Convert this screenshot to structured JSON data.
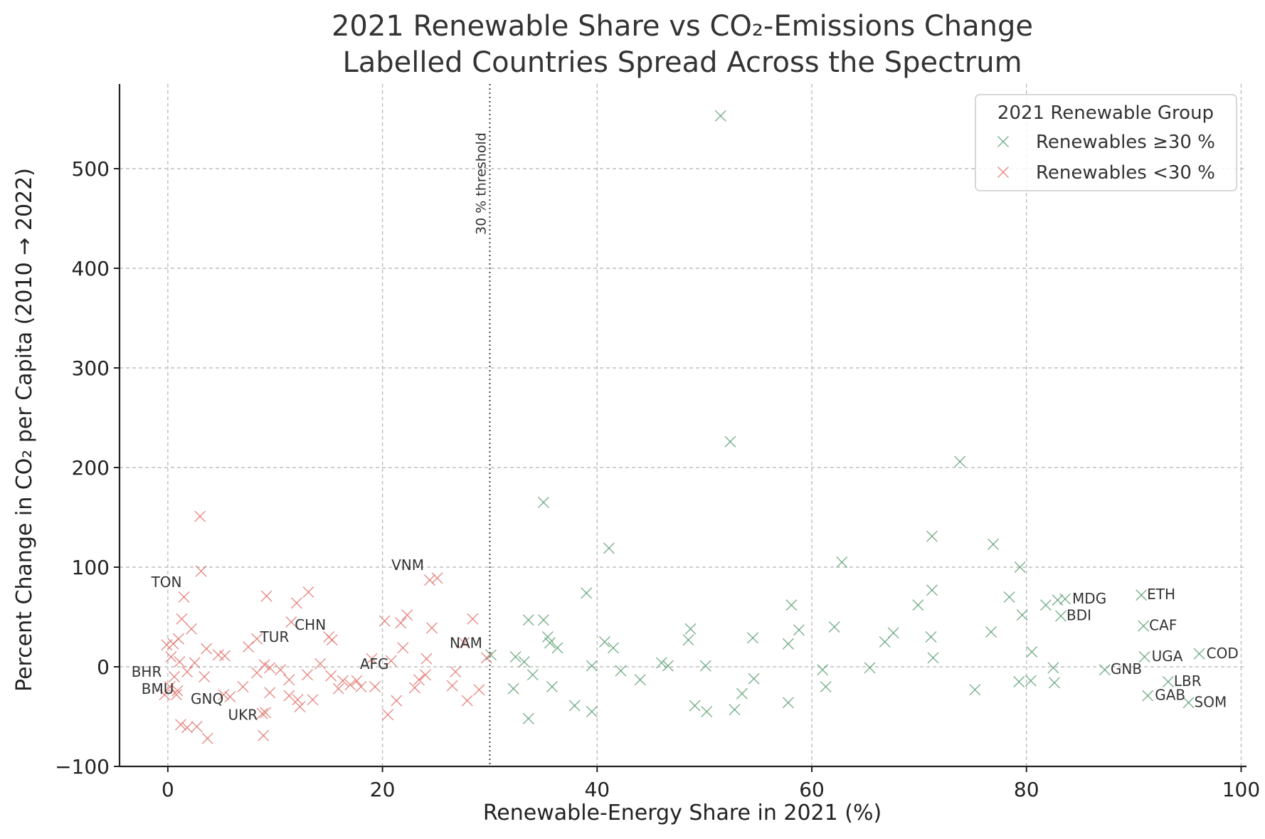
{
  "chart_data": {
    "type": "scatter",
    "title": [
      "2021 Renewable Share vs CO₂-Emissions Change",
      "Labelled Countries Spread Across the Spectrum"
    ],
    "xlabel": "Renewable-Energy Share in 2021 (%)",
    "ylabel": "Percent Change in CO₂ per Capita (2010 → 2022)",
    "xlim": [
      -4.5,
      100.5
    ],
    "ylim": [
      -100,
      585
    ],
    "xticks": [
      0,
      20,
      40,
      60,
      80,
      100
    ],
    "yticks": [
      -100,
      0,
      100,
      200,
      300,
      400,
      500
    ],
    "xtick_labels": [
      "0",
      "20",
      "40",
      "60",
      "80",
      "100"
    ],
    "ytick_labels": [
      "−100",
      "0",
      "100",
      "200",
      "300",
      "400",
      "500"
    ],
    "grid": true,
    "marker": "x",
    "threshold": {
      "x": 30,
      "label": "30 % threshold"
    },
    "legend": {
      "title": "2021 Renewable Group",
      "placement": "top-right",
      "entries": [
        "Renewables ≥30 %",
        "Renewables <30 %"
      ]
    },
    "series": [
      {
        "name": "Renewables ≥30 %",
        "color": "#5a9e6f",
        "points": [
          [
            51.5,
            553
          ],
          [
            52.4,
            226
          ],
          [
            73.8,
            206
          ],
          [
            35.0,
            165
          ],
          [
            71.2,
            131
          ],
          [
            41.1,
            119
          ],
          [
            76.9,
            123
          ],
          [
            62.8,
            105
          ],
          [
            79.4,
            100
          ],
          [
            39.0,
            74
          ],
          [
            71.2,
            77
          ],
          [
            69.9,
            62
          ],
          [
            58.1,
            62
          ],
          [
            78.4,
            70
          ],
          [
            81.8,
            62
          ],
          [
            82.9,
            67
          ],
          [
            83.6,
            68
          ],
          [
            83.2,
            51
          ],
          [
            79.6,
            52
          ],
          [
            90.7,
            72
          ],
          [
            90.9,
            41
          ],
          [
            33.6,
            47
          ],
          [
            35.0,
            47
          ],
          [
            35.4,
            30
          ],
          [
            35.6,
            24
          ],
          [
            36.3,
            19
          ],
          [
            40.7,
            25
          ],
          [
            41.5,
            19
          ],
          [
            48.7,
            38
          ],
          [
            48.5,
            27
          ],
          [
            54.5,
            29
          ],
          [
            57.8,
            23
          ],
          [
            58.8,
            37
          ],
          [
            62.1,
            40
          ],
          [
            66.8,
            25
          ],
          [
            67.6,
            34
          ],
          [
            71.1,
            30
          ],
          [
            71.3,
            9
          ],
          [
            76.7,
            35
          ],
          [
            80.5,
            15
          ],
          [
            96.1,
            13
          ],
          [
            91.0,
            10
          ],
          [
            30.1,
            12
          ],
          [
            32.4,
            10
          ],
          [
            33.2,
            5
          ],
          [
            34.0,
            -8
          ],
          [
            39.5,
            1
          ],
          [
            42.2,
            -4
          ],
          [
            44.0,
            -13
          ],
          [
            46.0,
            4
          ],
          [
            46.6,
            1
          ],
          [
            50.1,
            1
          ],
          [
            54.6,
            -12
          ],
          [
            61.0,
            -3
          ],
          [
            65.4,
            -1
          ],
          [
            82.5,
            -1
          ],
          [
            87.3,
            -3
          ],
          [
            79.3,
            -15
          ],
          [
            80.4,
            -14
          ],
          [
            82.6,
            -16
          ],
          [
            93.2,
            -15
          ],
          [
            32.2,
            -22
          ],
          [
            35.8,
            -20
          ],
          [
            53.5,
            -27
          ],
          [
            61.3,
            -20
          ],
          [
            75.2,
            -23
          ],
          [
            33.6,
            -52
          ],
          [
            37.9,
            -39
          ],
          [
            39.5,
            -45
          ],
          [
            49.1,
            -39
          ],
          [
            50.2,
            -45
          ],
          [
            52.8,
            -43
          ],
          [
            57.8,
            -36
          ],
          [
            91.3,
            -29
          ],
          [
            95.1,
            -36
          ]
        ]
      },
      {
        "name": "Renewables <30 %",
        "color": "#e0706a",
        "points": [
          [
            3.0,
            151
          ],
          [
            3.1,
            96
          ],
          [
            1.5,
            70
          ],
          [
            24.4,
            87
          ],
          [
            25.1,
            89
          ],
          [
            9.2,
            71
          ],
          [
            13.1,
            75
          ],
          [
            12.0,
            64
          ],
          [
            1.3,
            48
          ],
          [
            2.2,
            38
          ],
          [
            24.6,
            39
          ],
          [
            21.7,
            44
          ],
          [
            22.3,
            52
          ],
          [
            20.2,
            46
          ],
          [
            28.4,
            48
          ],
          [
            11.5,
            45
          ],
          [
            27.6,
            24
          ],
          [
            0.5,
            23
          ],
          [
            -0.1,
            22
          ],
          [
            1.0,
            28
          ],
          [
            15.0,
            30
          ],
          [
            15.3,
            27
          ],
          [
            8.3,
            28
          ],
          [
            3.6,
            18
          ],
          [
            7.5,
            20
          ],
          [
            21.9,
            19
          ],
          [
            4.7,
            12
          ],
          [
            5.3,
            11
          ],
          [
            0.3,
            10
          ],
          [
            1.1,
            5
          ],
          [
            2.5,
            4
          ],
          [
            19.0,
            8
          ],
          [
            20.8,
            6
          ],
          [
            24.1,
            8
          ],
          [
            29.7,
            9
          ],
          [
            14.2,
            3
          ],
          [
            9.0,
            2
          ],
          [
            9.5,
            -1
          ],
          [
            10.5,
            -3
          ],
          [
            13.0,
            -8
          ],
          [
            15.2,
            -9
          ],
          [
            17.6,
            -14
          ],
          [
            8.3,
            -6
          ],
          [
            11.3,
            -13
          ],
          [
            16.3,
            -14
          ],
          [
            18.0,
            -20
          ],
          [
            19.3,
            -20
          ],
          [
            23.4,
            -13
          ],
          [
            24.0,
            -8
          ],
          [
            26.8,
            -5
          ],
          [
            0.6,
            -10
          ],
          [
            1.8,
            -5
          ],
          [
            3.4,
            -10
          ],
          [
            0.2,
            -20
          ],
          [
            0.9,
            -24
          ],
          [
            -0.3,
            -28
          ],
          [
            0.8,
            -28
          ],
          [
            5.2,
            -28
          ],
          [
            5.8,
            -30
          ],
          [
            7.0,
            -20
          ],
          [
            9.5,
            -26
          ],
          [
            11.3,
            -29
          ],
          [
            12.1,
            -33
          ],
          [
            13.5,
            -33
          ],
          [
            15.9,
            -22
          ],
          [
            17.0,
            -18
          ],
          [
            23.0,
            -21
          ],
          [
            26.5,
            -19
          ],
          [
            29.0,
            -23
          ],
          [
            21.3,
            -34
          ],
          [
            20.5,
            -48
          ],
          [
            27.9,
            -34
          ],
          [
            1.2,
            -58
          ],
          [
            1.8,
            -61
          ],
          [
            2.7,
            -60
          ],
          [
            3.7,
            -72
          ],
          [
            8.8,
            -47
          ],
          [
            9.1,
            -46
          ],
          [
            8.9,
            -69
          ],
          [
            12.3,
            -40
          ]
        ]
      }
    ],
    "annotations": [
      {
        "text": "TON",
        "x": 1.5,
        "y": 70
      },
      {
        "text": "VNM",
        "x": 24.4,
        "y": 87
      },
      {
        "text": "CHN",
        "x": 15.0,
        "y": 27
      },
      {
        "text": "TUR",
        "x": 11.5,
        "y": 15
      },
      {
        "text": "BHR",
        "x": -0.3,
        "y": -3
      },
      {
        "text": "BMU",
        "x": 0.3,
        "y": -20
      },
      {
        "text": "GNQ",
        "x": 1.2,
        "y": -30
      },
      {
        "text": "UKR",
        "x": 8.5,
        "y": -46
      },
      {
        "text": "AFG",
        "x": 17.5,
        "y": -12
      },
      {
        "text": "NAM",
        "x": 29.7,
        "y": 9
      },
      {
        "text": "MDG",
        "x": 83.6,
        "y": 68
      },
      {
        "text": "BDI",
        "x": 83.2,
        "y": 51
      },
      {
        "text": "ETH",
        "x": 90.7,
        "y": 72
      },
      {
        "text": "CAF",
        "x": 90.9,
        "y": 41
      },
      {
        "text": "COD",
        "x": 96.1,
        "y": 13
      },
      {
        "text": "UGA",
        "x": 91.0,
        "y": 10
      },
      {
        "text": "GNB",
        "x": 87.3,
        "y": -3
      },
      {
        "text": "LBR",
        "x": 93.2,
        "y": -15
      },
      {
        "text": "GAB",
        "x": 91.3,
        "y": -29
      },
      {
        "text": "SOM",
        "x": 95.1,
        "y": -36
      }
    ]
  }
}
